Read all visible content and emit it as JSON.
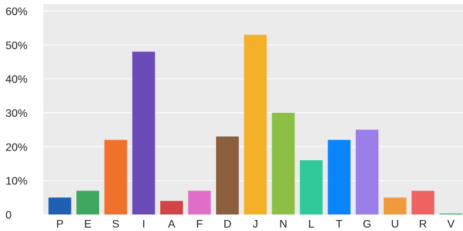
{
  "chart_data": {
    "type": "bar",
    "title": "",
    "xlabel": "",
    "ylabel": "",
    "categories": [
      "P",
      "E",
      "S",
      "I",
      "A",
      "F",
      "D",
      "J",
      "N",
      "L",
      "T",
      "G",
      "U",
      "R",
      "V"
    ],
    "values": [
      5,
      7,
      22,
      48,
      4,
      7,
      23,
      53,
      30,
      16,
      22,
      25,
      5,
      7,
      0.3
    ],
    "colors": [
      "#1f5fb4",
      "#3fa85f",
      "#f0712c",
      "#6a4bb8",
      "#d14545",
      "#e06ec8",
      "#8b5e3c",
      "#f5b02a",
      "#8cc044",
      "#31c99a",
      "#0a84ff",
      "#9b7fe8",
      "#f09a3e",
      "#ef6363",
      "#49b07a"
    ],
    "ylim": [
      0,
      60
    ],
    "yticks": [
      0,
      10,
      20,
      30,
      40,
      50,
      60
    ],
    "ytick_labels": [
      "0",
      "10%",
      "20%",
      "30%",
      "40%",
      "50%",
      "60%"
    ],
    "grid": true,
    "background": "#ebebeb",
    "grid_color": "#ffffff"
  }
}
